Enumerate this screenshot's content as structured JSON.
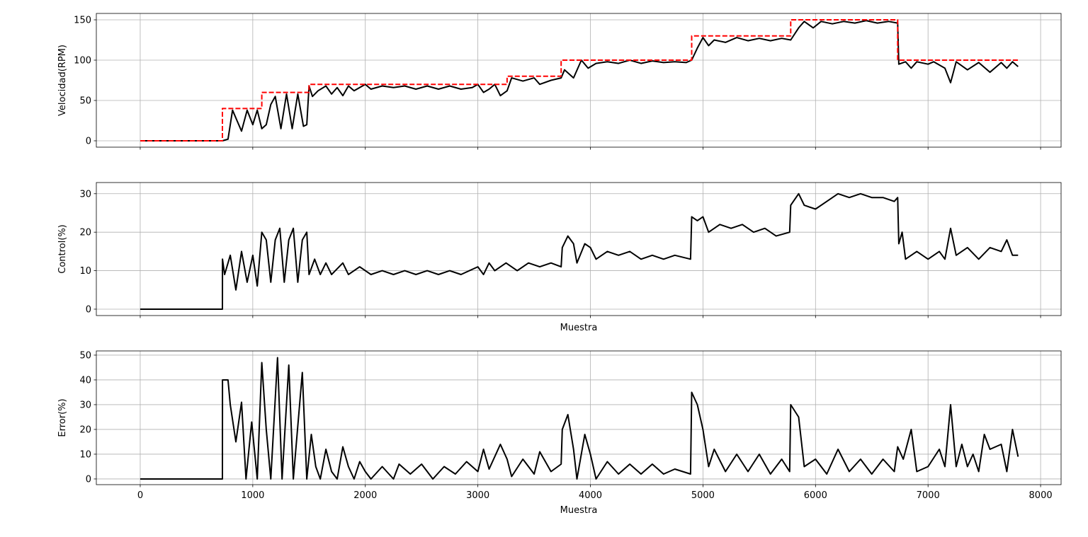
{
  "chart_data": [
    {
      "type": "line",
      "ylabel": "Velocidad(RPM)",
      "xlim": [
        -390,
        8182
      ],
      "ylim": [
        -7.9,
        157.9
      ],
      "xticks": [
        0,
        1000,
        2000,
        3000,
        4000,
        5000,
        6000,
        7000,
        8000
      ],
      "yticks": [
        0,
        50,
        100,
        150
      ],
      "show_xtick_labels": false,
      "grid": true,
      "series": [
        {
          "color": "#000000",
          "dashed": false,
          "x": [
            0,
            730,
            780,
            820,
            860,
            900,
            950,
            1000,
            1040,
            1080,
            1120,
            1160,
            1200,
            1250,
            1300,
            1350,
            1400,
            1450,
            1480,
            1500,
            1530,
            1580,
            1650,
            1700,
            1750,
            1800,
            1850,
            1900,
            2000,
            2050,
            2150,
            2250,
            2350,
            2450,
            2550,
            2650,
            2750,
            2850,
            2950,
            3000,
            3050,
            3100,
            3150,
            3200,
            3260,
            3300,
            3400,
            3500,
            3550,
            3650,
            3740,
            3770,
            3850,
            3920,
            3980,
            4050,
            4150,
            4250,
            4350,
            4450,
            4550,
            4650,
            4750,
            4850,
            4900,
            4950,
            5000,
            5050,
            5100,
            5200,
            5300,
            5400,
            5500,
            5600,
            5700,
            5780,
            5850,
            5900,
            5980,
            6050,
            6150,
            6250,
            6350,
            6450,
            6550,
            6650,
            6730,
            6740,
            6800,
            6850,
            6900,
            7000,
            7050,
            7150,
            7200,
            7250,
            7350,
            7450,
            7550,
            7650,
            7700,
            7750,
            7800
          ],
          "values": [
            0,
            0,
            2,
            38,
            25,
            12,
            38,
            20,
            38,
            15,
            20,
            45,
            55,
            15,
            58,
            15,
            58,
            18,
            20,
            68,
            55,
            62,
            68,
            58,
            66,
            56,
            68,
            62,
            70,
            64,
            68,
            66,
            68,
            64,
            68,
            64,
            68,
            64,
            66,
            70,
            60,
            64,
            70,
            56,
            62,
            78,
            74,
            78,
            70,
            75,
            78,
            88,
            78,
            100,
            90,
            96,
            98,
            96,
            100,
            96,
            99,
            97,
            98,
            97,
            100,
            115,
            128,
            118,
            125,
            122,
            128,
            124,
            127,
            124,
            127,
            125,
            140,
            148,
            140,
            148,
            145,
            148,
            146,
            149,
            146,
            148,
            146,
            95,
            98,
            90,
            98,
            95,
            98,
            90,
            72,
            98,
            88,
            97,
            85,
            97,
            90,
            98,
            92
          ]
        },
        {
          "color": "#ff0000",
          "dashed": true,
          "x": [
            0,
            730,
            730,
            1080,
            1080,
            1500,
            1500,
            3260,
            3260,
            3740,
            3740,
            4900,
            4900,
            5780,
            5780,
            6730,
            6730,
            7800
          ],
          "values": [
            0,
            0,
            40,
            40,
            60,
            60,
            70,
            70,
            80,
            80,
            100,
            100,
            130,
            130,
            150,
            150,
            100,
            100
          ]
        }
      ]
    },
    {
      "type": "line",
      "ylabel": "Control(%)",
      "xlabel": "Muestra",
      "xlim": [
        -390,
        8182
      ],
      "ylim": [
        -1.66,
        32.9
      ],
      "xticks": [
        0,
        1000,
        2000,
        3000,
        4000,
        5000,
        6000,
        7000,
        8000
      ],
      "yticks": [
        0,
        10,
        20,
        30
      ],
      "show_xtick_labels": false,
      "grid": true,
      "series": [
        {
          "color": "#000000",
          "dashed": false,
          "x": [
            0,
            730,
            731,
            750,
            800,
            850,
            900,
            950,
            1000,
            1040,
            1080,
            1120,
            1160,
            1200,
            1240,
            1280,
            1320,
            1360,
            1400,
            1440,
            1480,
            1500,
            1550,
            1600,
            1650,
            1700,
            1800,
            1850,
            1950,
            2050,
            2150,
            2250,
            2350,
            2450,
            2550,
            2650,
            2750,
            2850,
            3000,
            3050,
            3100,
            3150,
            3250,
            3350,
            3450,
            3550,
            3650,
            3740,
            3750,
            3800,
            3850,
            3880,
            3950,
            4000,
            4050,
            4150,
            4250,
            4350,
            4450,
            4550,
            4650,
            4750,
            4890,
            4900,
            4950,
            5000,
            5050,
            5150,
            5250,
            5350,
            5450,
            5550,
            5650,
            5770,
            5780,
            5850,
            5900,
            6000,
            6100,
            6200,
            6300,
            6400,
            6500,
            6600,
            6700,
            6730,
            6740,
            6770,
            6800,
            6900,
            7000,
            7100,
            7150,
            7200,
            7250,
            7350,
            7450,
            7550,
            7650,
            7700,
            7750,
            7800
          ],
          "values": [
            0,
            0,
            13,
            9,
            14,
            5,
            15,
            7,
            14,
            6,
            20,
            18,
            7,
            18,
            21,
            7,
            18,
            21,
            7,
            18,
            20,
            9,
            13,
            9,
            12,
            9,
            12,
            9,
            11,
            9,
            10,
            9,
            10,
            9,
            10,
            9,
            10,
            9,
            11,
            9,
            12,
            10,
            12,
            10,
            12,
            11,
            12,
            11,
            16,
            19,
            17,
            12,
            17,
            16,
            13,
            15,
            14,
            15,
            13,
            14,
            13,
            14,
            13,
            24,
            23,
            24,
            20,
            22,
            21,
            22,
            20,
            21,
            19,
            20,
            27,
            30,
            27,
            26,
            28,
            30,
            29,
            30,
            29,
            29,
            28,
            29,
            17,
            20,
            13,
            15,
            13,
            15,
            13,
            21,
            14,
            16,
            13,
            16,
            15,
            18,
            14,
            14
          ]
        }
      ]
    },
    {
      "type": "line",
      "ylabel": "Error(%)",
      "xlabel": "Muestra",
      "xlim": [
        -390,
        8182
      ],
      "ylim": [
        -2.3,
        51.7
      ],
      "xticks": [
        0,
        1000,
        2000,
        3000,
        4000,
        5000,
        6000,
        7000,
        8000
      ],
      "yticks": [
        0,
        10,
        20,
        30,
        40,
        50
      ],
      "show_xtick_labels": true,
      "grid": true,
      "series": [
        {
          "color": "#000000",
          "dashed": false,
          "x": [
            0,
            730,
            731,
            780,
            800,
            850,
            900,
            940,
            990,
            1040,
            1080,
            1120,
            1160,
            1220,
            1260,
            1320,
            1360,
            1440,
            1480,
            1520,
            1560,
            1600,
            1650,
            1700,
            1750,
            1800,
            1850,
            1900,
            1950,
            2000,
            2050,
            2150,
            2250,
            2300,
            2400,
            2500,
            2600,
            2700,
            2800,
            2900,
            3000,
            3050,
            3100,
            3200,
            3260,
            3300,
            3400,
            3500,
            3550,
            3650,
            3740,
            3750,
            3800,
            3850,
            3880,
            3950,
            4000,
            4050,
            4150,
            4250,
            4350,
            4450,
            4550,
            4650,
            4750,
            4890,
            4900,
            4950,
            5000,
            5050,
            5100,
            5200,
            5300,
            5400,
            5500,
            5600,
            5700,
            5770,
            5780,
            5850,
            5900,
            6000,
            6100,
            6200,
            6300,
            6400,
            6500,
            6600,
            6700,
            6730,
            6780,
            6850,
            6900,
            7000,
            7100,
            7150,
            7200,
            7250,
            7300,
            7350,
            7400,
            7450,
            7500,
            7550,
            7650,
            7700,
            7750,
            7800
          ],
          "values": [
            0,
            0,
            40,
            40,
            30,
            15,
            31,
            0,
            23,
            0,
            47,
            20,
            0,
            49,
            0,
            46,
            0,
            43,
            0,
            18,
            5,
            0,
            12,
            3,
            0,
            13,
            5,
            0,
            7,
            3,
            0,
            5,
            0,
            6,
            2,
            6,
            0,
            5,
            2,
            7,
            3,
            12,
            4,
            14,
            8,
            1,
            8,
            2,
            11,
            3,
            6,
            20,
            26,
            12,
            0,
            18,
            10,
            0,
            7,
            2,
            6,
            2,
            6,
            2,
            4,
            2,
            35,
            30,
            20,
            5,
            12,
            3,
            10,
            3,
            10,
            2,
            8,
            3,
            30,
            25,
            5,
            8,
            2,
            12,
            3,
            8,
            2,
            8,
            3,
            13,
            8,
            20,
            3,
            5,
            12,
            5,
            30,
            5,
            14,
            5,
            10,
            3,
            18,
            12,
            14,
            3,
            20,
            9
          ]
        }
      ]
    }
  ]
}
